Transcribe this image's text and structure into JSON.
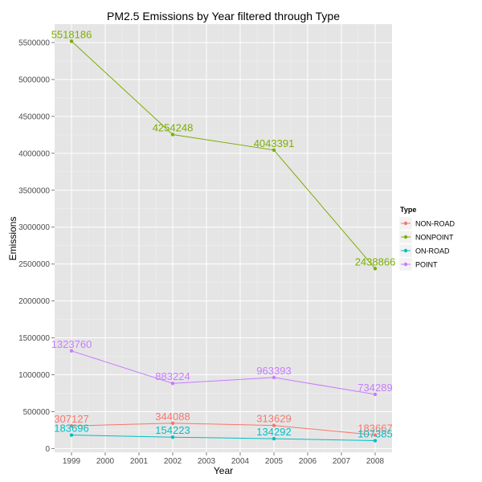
{
  "chart_data": {
    "type": "line",
    "title": "PM2.5 Emissions by Year filtered through Type",
    "xlabel": "Year",
    "ylabel": "Emissions",
    "x": [
      1999,
      2002,
      2005,
      2008
    ],
    "xlim": [
      1998.5,
      2008.5
    ],
    "x_ticks": [
      "1999",
      "2000",
      "2001",
      "2002",
      "2003",
      "2004",
      "2005",
      "2006",
      "2007",
      "2008"
    ],
    "ylim": [
      -50000,
      5750000
    ],
    "y_ticks": [
      "0",
      "500000",
      "1000000",
      "1500000",
      "2000000",
      "2500000",
      "3000000",
      "3500000",
      "4000000",
      "4500000",
      "5000000",
      "5500000"
    ],
    "grid": true,
    "legend": {
      "title": "Type",
      "position": "right"
    },
    "series": [
      {
        "name": "NON-ROAD",
        "color": "#F8766D",
        "values": [
          307127,
          344088,
          313629,
          183667
        ],
        "labels": [
          "307127",
          "344088",
          "313629",
          "183667"
        ]
      },
      {
        "name": "NONPOINT",
        "color": "#7CAE00",
        "values": [
          5518186,
          4254248,
          4043391,
          2438866
        ],
        "labels": [
          "5518186",
          "4254248",
          "4043391",
          "2438866"
        ]
      },
      {
        "name": "ON-ROAD",
        "color": "#00BFC4",
        "values": [
          183696,
          154223,
          134292,
          107385
        ],
        "labels": [
          "183696",
          "154223",
          "134292",
          "107385"
        ]
      },
      {
        "name": "POINT",
        "color": "#C77CFF",
        "values": [
          1323760,
          883224,
          963393,
          734289
        ],
        "labels": [
          "1323760",
          "883224",
          "963393",
          "734289"
        ]
      }
    ]
  }
}
